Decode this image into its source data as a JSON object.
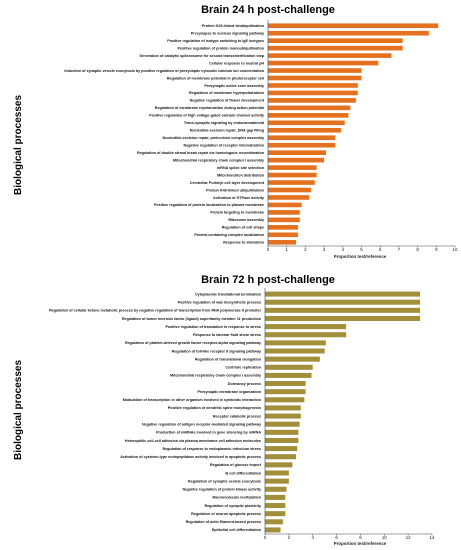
{
  "chart_data": [
    {
      "type": "bar",
      "orientation": "horizontal",
      "title": "Brain 24 h post-challenge",
      "ylabel": "Biological processes",
      "xlabel": "Proportion test/reference",
      "xlim": [
        0,
        10
      ],
      "xticks": [
        0,
        1,
        2,
        3,
        4,
        5,
        6,
        7,
        8,
        9,
        10
      ],
      "bar_color": "#E4711F",
      "grid": false,
      "categories": [
        "Protein K29-linked deubiquitination",
        "Presynapse to nucleus signaling pathway",
        "Positive regulation of isotype switching to IgE isotypes",
        "Positive regulation of protein monoubiquitination",
        "Generation of catalytic spliceosome for second transesterification step",
        "Cellular response to neutral pH",
        "Induction of synaptic vesicle exocytosis by positive regulation of presynaptic cytosolic calcium ion concentration",
        "Regulation of membrane potential in photoreceptor cell",
        "Presynaptic active zone assembly",
        "Regulation of membrane hyperpolarization",
        "Negative regulation of flower development",
        "Regulation of membrane repolarization during action potential",
        "Positive regulation of high voltage-gated calcium channel activity",
        "Trans-synaptic signaling by endocannabinoid",
        "Nucleotide-excision repair, DNA gap filling",
        "Nucleotide-excision repair, preincision complex assembly",
        "Negative regulation of receptor internalization",
        "Regulation of double-strand break repair via homologous recombination",
        "Mitochondrial respiratory chain complex I assembly",
        "mRNA splice site selection",
        "Mitochondrion distribution",
        "Cerebellar Purkinje cell layer development",
        "Protein K48-linked ubiquitination",
        "Activation of GTPase activity",
        "Positive regulation of protein localization to plasma membrane",
        "Protein targeting to membrane",
        "Ribosome assembly",
        "Regulation of cell shape",
        "Protein-containing complex localization",
        "Response to starvation"
      ],
      "values": [
        9.1,
        8.6,
        7.2,
        7.2,
        6.6,
        5.9,
        5.0,
        5.0,
        4.8,
        4.8,
        4.7,
        4.4,
        4.3,
        4.1,
        3.9,
        3.6,
        3.6,
        3.1,
        3.0,
        2.6,
        2.6,
        2.5,
        2.3,
        2.2,
        1.8,
        1.7,
        1.7,
        1.6,
        1.6,
        1.5
      ]
    },
    {
      "type": "bar",
      "orientation": "horizontal",
      "title": "Brain 72 h post-challenge",
      "ylabel": "Biological processes",
      "xlabel": "Proportion test/reference",
      "xlim": [
        0,
        14
      ],
      "xticks": [
        0,
        2,
        4,
        6,
        8,
        10,
        12,
        14
      ],
      "bar_color": "#A18F3A",
      "grid": false,
      "categories": [
        "Cytoplasmic translational termination",
        "Positive regulation of wax biosynthetic process",
        "Regulation of cellular ketone metabolic process by negative regulation of transcription from RNA polymerase II promoter",
        "Regulation of tumor necrosis factor (ligand) superfamily member 11 production",
        "Positive regulation of translation in response to stress",
        "Response to laminar fluid shear stress",
        "Regulation of platelet-derived growth factor receptor-alpha signaling pathway",
        "Regulation of toll-like receptor 9 signaling pathway",
        "Regulation of translational elongation",
        "Centriole replication",
        "Mitochondrial respiratory chain complex I assembly",
        "Dormancy process",
        "Presynaptic membrane organization",
        "Modulation of transcription in other organism involved in symbiotic interaction",
        "Positive regulation of dendritic spine morphogenesis",
        "Receptor catabolic process",
        "Negative regulation of antigen receptor-mediated signaling pathway",
        "Production of miRNAs involved in gene silencing by miRNA",
        "Heterophilic cell-cell adhesion via plasma membrane cell adhesion molecules",
        "Regulation of response to endoplasmic reticulum stress",
        "Activation of cysteine-type endopeptidase activity involved in apoptotic process",
        "Regulation of glucose import",
        "B cell differentiation",
        "Regulation of synaptic vesicle exocytosis",
        "Negative regulation of protein kinase activity",
        "Macromolecule methylation",
        "Regulation of synaptic plasticity",
        "Regulation of neuron apoptotic process",
        "Regulation of actin filament-based process",
        "Epithelial cell differentiation"
      ],
      "values": [
        13.0,
        13.0,
        13.0,
        13.0,
        6.8,
        6.8,
        5.1,
        5.0,
        4.6,
        4.0,
        3.9,
        3.4,
        3.4,
        3.3,
        3.0,
        3.0,
        2.9,
        2.8,
        2.8,
        2.7,
        2.6,
        2.3,
        2.0,
        2.0,
        1.8,
        1.7,
        1.7,
        1.7,
        1.5,
        1.3
      ]
    }
  ]
}
